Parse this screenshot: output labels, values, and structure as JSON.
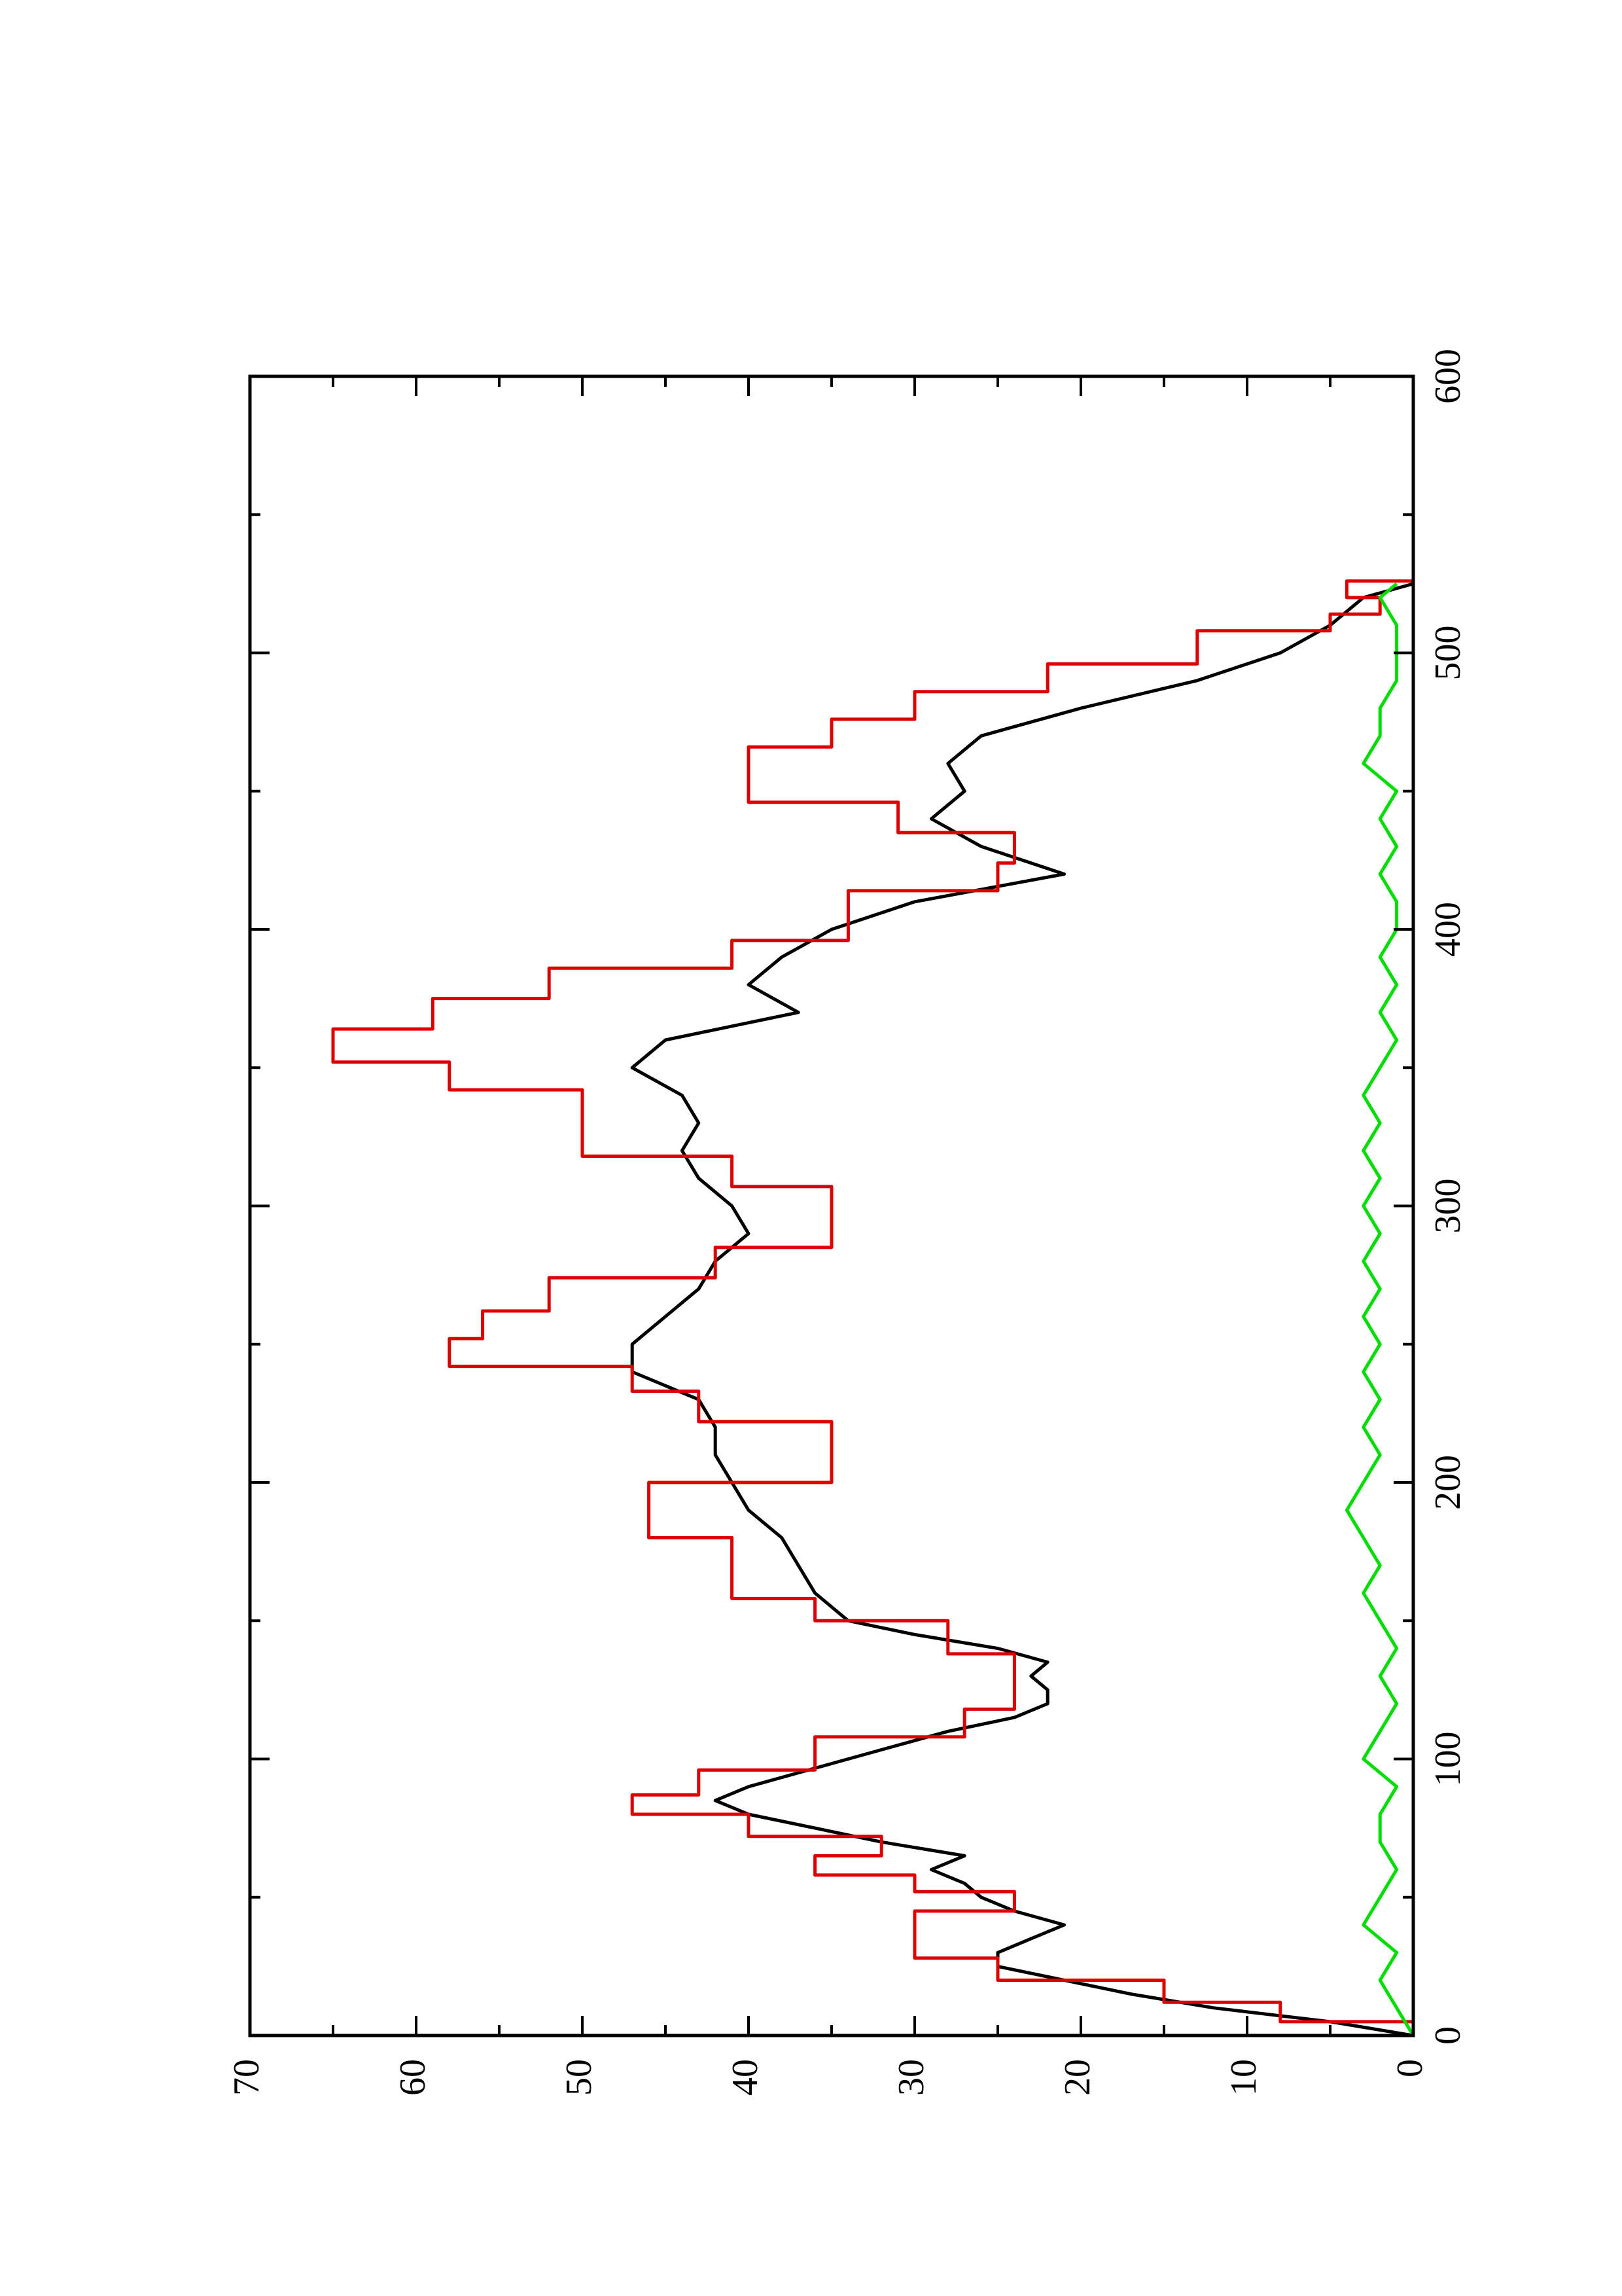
{
  "chart_data": {
    "type": "line",
    "title": "",
    "xlabel": "",
    "ylabel": "",
    "xlim": [
      0,
      600
    ],
    "ylim": [
      0,
      70
    ],
    "x_ticks": [
      0,
      100,
      200,
      300,
      400,
      500,
      600
    ],
    "x_minor_ticks": [
      50,
      150,
      250,
      350,
      450,
      550
    ],
    "y_ticks": [
      0,
      10,
      20,
      30,
      40,
      50,
      60,
      70
    ],
    "y_minor_ticks": [
      5,
      15,
      25,
      35,
      45,
      55,
      65
    ],
    "orientation": "rotated 90 degrees counter-clockwise",
    "grid": false,
    "legend": "none",
    "series": [
      {
        "color": "#000000",
        "step": false,
        "x": [
          0,
          5,
          10,
          15,
          20,
          25,
          30,
          35,
          40,
          45,
          50,
          55,
          60,
          65,
          70,
          75,
          80,
          85,
          90,
          95,
          100,
          105,
          110,
          115,
          120,
          125,
          130,
          135,
          140,
          145,
          150,
          160,
          170,
          180,
          190,
          200,
          210,
          220,
          230,
          240,
          250,
          260,
          270,
          280,
          290,
          300,
          310,
          320,
          330,
          340,
          350,
          360,
          370,
          380,
          390,
          400,
          410,
          420,
          430,
          440,
          450,
          460,
          470,
          480,
          490,
          500,
          510,
          520,
          525
        ],
        "y": [
          0,
          5,
          12,
          17,
          21,
          25,
          25,
          23,
          21,
          24,
          26,
          27,
          29,
          27,
          32,
          36,
          40,
          42,
          40,
          37,
          34,
          31,
          28,
          24,
          22,
          22,
          23,
          22,
          25,
          30,
          34,
          36,
          37,
          38,
          40,
          41,
          42,
          42,
          43,
          47,
          47,
          45,
          43,
          42,
          40,
          41,
          43,
          44,
          43,
          44,
          47,
          45,
          37,
          40,
          38,
          35,
          30,
          21,
          26,
          29,
          27,
          28,
          26,
          20,
          13,
          8,
          5,
          3,
          0
        ]
      },
      {
        "color": "#dd0000",
        "step": true,
        "x": [
          0,
          5,
          12,
          20,
          28,
          38,
          45,
          52,
          58,
          65,
          72,
          80,
          87,
          96,
          108,
          118,
          128,
          138,
          150,
          158,
          170,
          180,
          190,
          200,
          212,
          222,
          233,
          242,
          252,
          262,
          274,
          285,
          296,
          307,
          318,
          330,
          342,
          352,
          364,
          375,
          386,
          396,
          406,
          414,
          424,
          435,
          446,
          456,
          466,
          476,
          486,
          496,
          508,
          514,
          520,
          526
        ],
        "y": [
          0,
          8,
          15,
          25,
          30,
          30,
          24,
          30,
          36,
          32,
          40,
          47,
          43,
          36,
          27,
          24,
          24,
          28,
          36,
          41,
          41,
          46,
          46,
          35,
          35,
          43,
          47,
          58,
          56,
          52,
          42,
          35,
          35,
          41,
          50,
          50,
          58,
          65,
          59,
          52,
          41,
          34,
          34,
          25,
          24,
          31,
          40,
          40,
          35,
          30,
          22,
          13,
          5,
          2,
          4,
          0
        ]
      },
      {
        "color": "#00dd00",
        "step": false,
        "x": [
          0,
          10,
          20,
          30,
          40,
          50,
          60,
          70,
          80,
          90,
          100,
          110,
          120,
          130,
          140,
          150,
          160,
          170,
          180,
          190,
          200,
          210,
          220,
          230,
          240,
          250,
          260,
          270,
          280,
          290,
          300,
          310,
          320,
          330,
          340,
          350,
          360,
          370,
          380,
          390,
          400,
          410,
          420,
          430,
          440,
          450,
          460,
          470,
          480,
          490,
          500,
          510,
          520,
          525
        ],
        "y": [
          0,
          1,
          2,
          1,
          3,
          2,
          1,
          2,
          2,
          1,
          3,
          2,
          1,
          2,
          1,
          2,
          3,
          2,
          3,
          4,
          3,
          2,
          3,
          2,
          3,
          2,
          3,
          2,
          3,
          2,
          3,
          2,
          3,
          2,
          3,
          2,
          1,
          2,
          1,
          2,
          1,
          1,
          2,
          1,
          2,
          1,
          3,
          2,
          2,
          1,
          1,
          1,
          2,
          1
        ]
      }
    ]
  }
}
